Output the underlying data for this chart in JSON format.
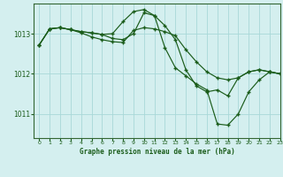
{
  "title": "Graphe pression niveau de la mer (hPa)",
  "bg_color": "#d4efef",
  "grid_color": "#a8d8d8",
  "line_color": "#1a5c1a",
  "spine_color": "#336633",
  "xlim": [
    -0.5,
    23
  ],
  "ylim": [
    1010.4,
    1013.75
  ],
  "yticks": [
    1011,
    1012,
    1013
  ],
  "xticks": [
    0,
    1,
    2,
    3,
    4,
    5,
    6,
    7,
    8,
    9,
    10,
    11,
    12,
    13,
    14,
    15,
    16,
    17,
    18,
    19,
    20,
    21,
    22,
    23
  ],
  "series": [
    {
      "x": [
        0,
        1,
        2,
        3,
        4,
        5,
        6,
        7,
        8,
        9,
        10,
        11,
        12,
        13,
        14,
        15,
        16,
        17,
        18,
        19,
        20,
        21,
        22,
        23
      ],
      "y": [
        1012.72,
        1013.12,
        1013.15,
        1013.1,
        1013.02,
        1012.92,
        1012.85,
        1012.8,
        1012.78,
        1013.08,
        1013.15,
        1013.12,
        1013.05,
        1012.95,
        1012.6,
        1012.3,
        1012.05,
        1011.9,
        1011.85,
        1011.9,
        1012.05,
        1012.1,
        1012.05,
        1012.0
      ]
    },
    {
      "x": [
        0,
        1,
        2,
        3,
        4,
        5,
        6,
        7,
        8,
        9,
        10,
        11,
        12,
        13,
        14,
        15,
        16,
        17,
        18,
        19,
        20,
        21,
        22,
        23
      ],
      "y": [
        1012.72,
        1013.12,
        1013.15,
        1013.1,
        1013.05,
        1013.02,
        1012.98,
        1013.0,
        1013.3,
        1013.55,
        1013.6,
        1013.45,
        1013.2,
        1012.85,
        1012.1,
        1011.7,
        1011.55,
        1011.6,
        1011.45,
        1011.9,
        1012.05,
        1012.1,
        1012.05,
        1012.0
      ]
    },
    {
      "x": [
        0,
        1,
        2,
        3,
        4,
        5,
        6,
        7,
        8,
        9,
        10,
        11,
        12,
        13,
        14,
        15,
        16,
        17,
        18,
        19,
        20,
        21,
        22,
        23
      ],
      "y": [
        1012.72,
        1013.12,
        1013.15,
        1013.1,
        1013.05,
        1013.02,
        1012.98,
        1012.88,
        1012.85,
        1013.0,
        1013.52,
        1013.45,
        1012.65,
        1012.15,
        1011.95,
        1011.75,
        1011.6,
        1010.75,
        1010.72,
        1011.0,
        1011.55,
        1011.85,
        1012.05,
        1012.0
      ]
    }
  ]
}
